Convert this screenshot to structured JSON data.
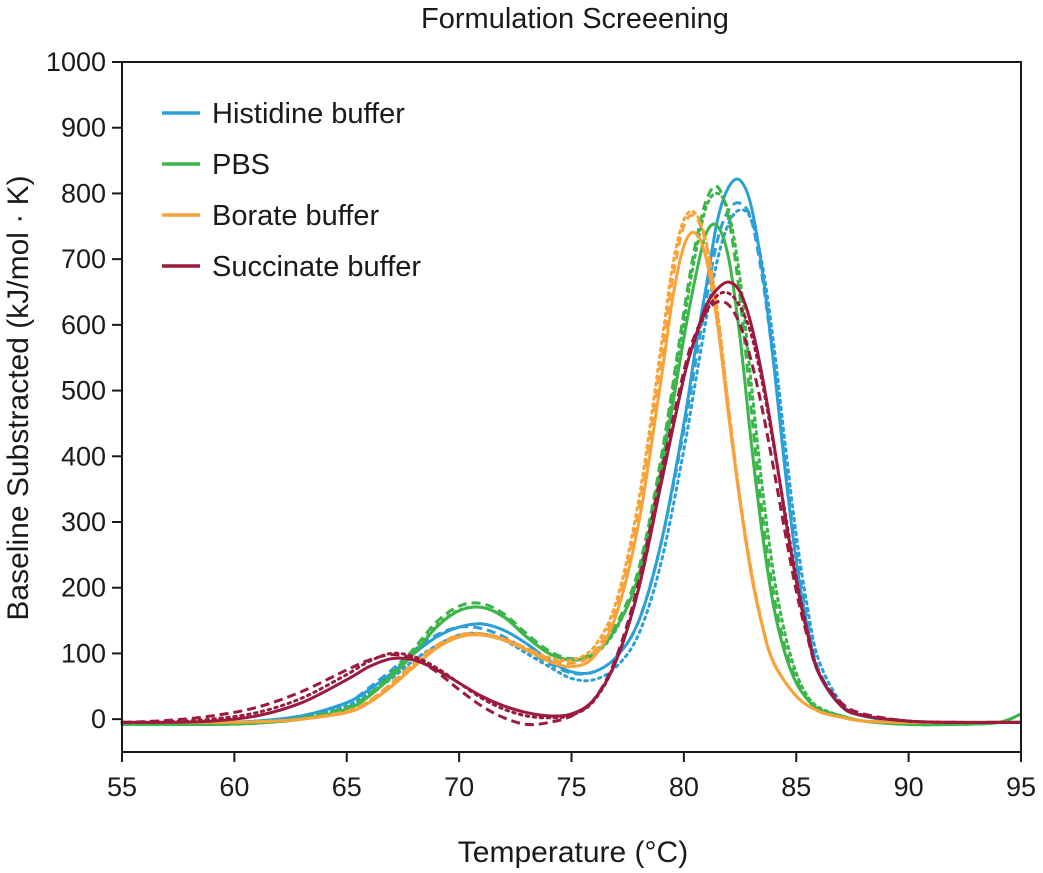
{
  "chart_data": {
    "type": "line",
    "title": "Formulation Screeening",
    "xlabel": "Temperature (°C)",
    "ylabel": "Baseline Substracted (kJ/mol · K)",
    "xlim": [
      55,
      95
    ],
    "ylim": [
      -50,
      1000
    ],
    "xticks": [
      55,
      60,
      65,
      70,
      75,
      80,
      85,
      90,
      95
    ],
    "yticks": [
      0,
      100,
      200,
      300,
      400,
      500,
      600,
      700,
      800,
      900,
      1000
    ],
    "grid": false,
    "legend_position": "top-left",
    "line_styles": [
      "solid",
      "dashed",
      "dotted"
    ],
    "series": [
      {
        "name": "Histidine buffer",
        "color": "#2a9fd8",
        "replicates": [
          {
            "style": "solid",
            "x": [
              55,
              57,
              59,
              61,
              63,
              65,
              66,
              67,
              68,
              69,
              70,
              71,
              72,
              73,
              74,
              75,
              76,
              77,
              78,
              79,
              80,
              80.5,
              81,
              81.5,
              82,
              82.5,
              83,
              83.5,
              84,
              84.5,
              85,
              85.5,
              86,
              87,
              88,
              90,
              92,
              94,
              95
            ],
            "y": [
              -5,
              -5,
              -5,
              -3,
              5,
              25,
              45,
              70,
              100,
              125,
              140,
              145,
              135,
              115,
              90,
              72,
              72,
              95,
              150,
              270,
              450,
              560,
              660,
              760,
              810,
              820,
              780,
              680,
              540,
              380,
              240,
              140,
              70,
              20,
              5,
              -5,
              -5,
              -5,
              -5
            ]
          },
          {
            "style": "dashed",
            "x": [
              55,
              57,
              59,
              61,
              63,
              65,
              66,
              67,
              68,
              69,
              70,
              71,
              72,
              73,
              74,
              75,
              76,
              77,
              78,
              79,
              80,
              80.5,
              81,
              81.5,
              82,
              82.5,
              83,
              83.5,
              84,
              84.5,
              85,
              85.5,
              86,
              87,
              88,
              90,
              92,
              94,
              95
            ],
            "y": [
              -5,
              -5,
              -5,
              -3,
              5,
              25,
              48,
              75,
              105,
              128,
              140,
              138,
              125,
              105,
              85,
              70,
              72,
              95,
              150,
              270,
              440,
              540,
              640,
              730,
              775,
              785,
              760,
              670,
              540,
              390,
              250,
              150,
              75,
              20,
              5,
              -5,
              -5,
              -5,
              -5
            ]
          },
          {
            "style": "dotted",
            "x": [
              55,
              57,
              59,
              61,
              63,
              65,
              66,
              67,
              68,
              69,
              70,
              71,
              72,
              73,
              74,
              75,
              76,
              77,
              78,
              79,
              80,
              80.5,
              81,
              81.5,
              82,
              82.5,
              83,
              83.5,
              84,
              84.5,
              85,
              85.5,
              86,
              87,
              88,
              90,
              92,
              94,
              95
            ],
            "y": [
              -5,
              -5,
              -5,
              -3,
              5,
              20,
              40,
              62,
              90,
              112,
              128,
              130,
              120,
              100,
              80,
              62,
              60,
              80,
              130,
              240,
              410,
              510,
              610,
              700,
              755,
              775,
              760,
              690,
              570,
              420,
              280,
              170,
              90,
              25,
              5,
              -5,
              -5,
              -5,
              -5
            ]
          }
        ]
      },
      {
        "name": "PBS",
        "color": "#3cb54a",
        "replicates": [
          {
            "style": "solid",
            "x": [
              55,
              57,
              59,
              61,
              63,
              65,
              66,
              67,
              68,
              69,
              70,
              71,
              72,
              73,
              74,
              75,
              76,
              77,
              78,
              79,
              80,
              80.5,
              81,
              81.5,
              82,
              82.5,
              83,
              83.5,
              84,
              84.5,
              85,
              85.5,
              86,
              87,
              88,
              90,
              92,
              94,
              95
            ],
            "y": [
              -8,
              -8,
              -8,
              -6,
              0,
              15,
              35,
              65,
              100,
              140,
              165,
              170,
              155,
              125,
              100,
              90,
              100,
              140,
              220,
              380,
              580,
              670,
              740,
              750,
              700,
              580,
              420,
              280,
              170,
              100,
              55,
              30,
              15,
              5,
              -3,
              -8,
              -8,
              -5,
              8
            ]
          },
          {
            "style": "dashed",
            "x": [
              55,
              57,
              59,
              61,
              63,
              65,
              66,
              67,
              68,
              69,
              70,
              71,
              72,
              73,
              74,
              75,
              76,
              77,
              78,
              79,
              80,
              80.5,
              81,
              81.5,
              82,
              82.5,
              83,
              83.5,
              84,
              84.5,
              85,
              85.5,
              86,
              87,
              88,
              90,
              92,
              94,
              95
            ],
            "y": [
              -8,
              -8,
              -8,
              -6,
              2,
              18,
              38,
              70,
              108,
              148,
              172,
              176,
              160,
              130,
              104,
              92,
              102,
              145,
              230,
              400,
              620,
              720,
              790,
              810,
              760,
              640,
              470,
              310,
              190,
              110,
              60,
              30,
              15,
              5,
              -3,
              -8,
              -8,
              -5,
              8
            ]
          },
          {
            "style": "dotted",
            "x": [
              55,
              57,
              59,
              61,
              63,
              65,
              66,
              67,
              68,
              69,
              70,
              71,
              72,
              73,
              74,
              75,
              76,
              77,
              78,
              79,
              80,
              80.5,
              81,
              81.5,
              82,
              82.5,
              83,
              83.5,
              84,
              84.5,
              85,
              85.5,
              86,
              87,
              88,
              90,
              92,
              94,
              95
            ],
            "y": [
              -8,
              -8,
              -8,
              -6,
              2,
              16,
              36,
              66,
              102,
              142,
              166,
              170,
              156,
              126,
              100,
              90,
              98,
              138,
              222,
              390,
              605,
              705,
              780,
              800,
              770,
              670,
              510,
              350,
              220,
              130,
              70,
              35,
              18,
              5,
              -3,
              -8,
              -8,
              -5,
              8
            ]
          }
        ]
      },
      {
        "name": "Borate buffer",
        "color": "#f7a33a",
        "replicates": [
          {
            "style": "solid",
            "x": [
              55,
              57,
              59,
              61,
              63,
              65,
              66,
              67,
              68,
              69,
              70,
              71,
              72,
              73,
              74,
              75,
              76,
              77,
              78,
              79,
              79.5,
              80,
              80.5,
              81,
              81.5,
              82,
              82.5,
              83,
              83.5,
              84,
              85,
              86,
              87,
              88,
              90,
              92,
              94,
              95
            ],
            "y": [
              -5,
              -5,
              -5,
              -4,
              0,
              10,
              25,
              50,
              80,
              108,
              125,
              128,
              120,
              105,
              88,
              80,
              95,
              160,
              300,
              520,
              640,
              720,
              740,
              700,
              600,
              460,
              330,
              220,
              140,
              85,
              35,
              12,
              3,
              -3,
              -5,
              -5,
              -5,
              -5
            ]
          },
          {
            "style": "dashed",
            "x": [
              55,
              57,
              59,
              61,
              63,
              65,
              66,
              67,
              68,
              69,
              70,
              71,
              72,
              73,
              74,
              75,
              76,
              77,
              78,
              79,
              79.5,
              80,
              80.5,
              81,
              81.5,
              82,
              82.5,
              83,
              83.5,
              84,
              85,
              86,
              87,
              88,
              90,
              92,
              94,
              95
            ],
            "y": [
              -5,
              -5,
              -5,
              -4,
              0,
              12,
              28,
              55,
              86,
              112,
              128,
              130,
              122,
              108,
              92,
              85,
              102,
              170,
              320,
              550,
              670,
              750,
              765,
              720,
              615,
              470,
              335,
              225,
              142,
              86,
              35,
              12,
              3,
              -3,
              -5,
              -5,
              -5,
              -5
            ]
          },
          {
            "style": "dotted",
            "x": [
              55,
              57,
              59,
              61,
              63,
              65,
              66,
              67,
              68,
              69,
              70,
              71,
              72,
              73,
              74,
              75,
              76,
              77,
              78,
              79,
              79.5,
              80,
              80.5,
              81,
              81.5,
              82,
              82.5,
              83,
              83.5,
              84,
              85,
              86,
              87,
              88,
              90,
              92,
              94,
              95
            ],
            "y": [
              -5,
              -5,
              -5,
              -4,
              0,
              12,
              27,
              53,
              84,
              110,
              127,
              130,
              122,
              108,
              94,
              90,
              110,
              180,
              335,
              570,
              690,
              760,
              770,
              725,
              620,
              470,
              335,
              225,
              142,
              86,
              35,
              12,
              3,
              -3,
              -5,
              -5,
              -5,
              -5
            ]
          }
        ]
      },
      {
        "name": "Succinate buffer",
        "color": "#9b1b3f",
        "replicates": [
          {
            "style": "solid",
            "x": [
              55,
              57,
              59,
              61,
              63,
              65,
              66,
              67,
              68,
              69,
              70,
              71,
              72,
              73,
              74,
              75,
              76,
              77,
              78,
              79,
              80,
              80.5,
              81,
              81.5,
              82,
              82.5,
              83,
              83.5,
              84,
              84.5,
              85,
              85.5,
              86,
              87,
              88,
              90,
              92,
              94,
              95
            ],
            "y": [
              -5,
              -5,
              -3,
              5,
              25,
              60,
              80,
              92,
              90,
              75,
              55,
              35,
              20,
              10,
              5,
              8,
              30,
              90,
              200,
              360,
              520,
              580,
              630,
              655,
              665,
              650,
              600,
              520,
              420,
              310,
              210,
              130,
              70,
              20,
              5,
              -3,
              -5,
              -5,
              -5
            ]
          },
          {
            "style": "dashed",
            "x": [
              55,
              57,
              59,
              61,
              63,
              65,
              66,
              67,
              68,
              69,
              70,
              71,
              72,
              73,
              74,
              75,
              76,
              77,
              78,
              79,
              80,
              80.5,
              81,
              81.5,
              82,
              82.5,
              83,
              83.5,
              84,
              84.5,
              85,
              85.5,
              86,
              87,
              88,
              90,
              92,
              94,
              95
            ],
            "y": [
              -5,
              -2,
              5,
              18,
              42,
              75,
              90,
              98,
              92,
              72,
              45,
              20,
              2,
              -8,
              -5,
              5,
              30,
              95,
              210,
              375,
              530,
              585,
              620,
              635,
              630,
              600,
              545,
              470,
              380,
              285,
              195,
              125,
              70,
              25,
              8,
              -3,
              -5,
              -5,
              -5
            ]
          },
          {
            "style": "dotted",
            "x": [
              55,
              57,
              59,
              61,
              63,
              65,
              66,
              67,
              68,
              69,
              70,
              71,
              72,
              73,
              74,
              75,
              76,
              77,
              78,
              79,
              80,
              80.5,
              81,
              81.5,
              82,
              82.5,
              83,
              83.5,
              84,
              84.5,
              85,
              85.5,
              86,
              87,
              88,
              90,
              92,
              94,
              95
            ],
            "y": [
              -5,
              -4,
              0,
              10,
              32,
              68,
              88,
              100,
              95,
              78,
              55,
              32,
              15,
              5,
              2,
              6,
              28,
              90,
              200,
              362,
              520,
              578,
              620,
              645,
              648,
              628,
              585,
              510,
              415,
              315,
              215,
              135,
              72,
              22,
              6,
              -3,
              -5,
              -5,
              -5
            ]
          }
        ]
      }
    ]
  }
}
